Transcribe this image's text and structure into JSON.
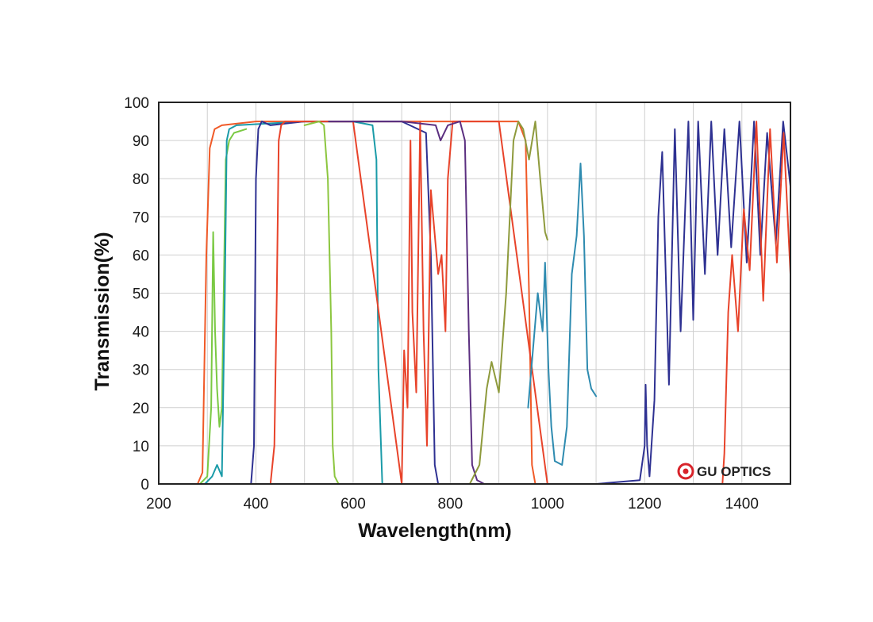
{
  "chart_data": {
    "type": "line",
    "xlabel": "Wavelength(nm)",
    "ylabel": "Transmission(%)",
    "xlim": [
      200,
      1500
    ],
    "ylim": [
      0,
      100
    ],
    "x_ticks": [
      200,
      400,
      600,
      800,
      1000,
      1200,
      1400
    ],
    "x_tick_labels": [
      "200",
      "400",
      "600",
      "800",
      "1000",
      "1200",
      "1400"
    ],
    "y_ticks": [
      0,
      10,
      20,
      30,
      40,
      50,
      60,
      70,
      80,
      90,
      100
    ],
    "y_tick_labels": [
      "0",
      "10",
      "20",
      "30",
      "40",
      "50",
      "60",
      "70",
      "80",
      "90",
      "100"
    ],
    "grid": true,
    "series": [
      {
        "color": "#f05a28",
        "x": [
          280,
          290,
          298,
          305,
          315,
          330,
          400,
          600,
          800,
          900,
          940,
          955,
          962,
          968,
          975
        ],
        "y": [
          0,
          3,
          60,
          88,
          93,
          94,
          95,
          95,
          95,
          95,
          95,
          90,
          50,
          5,
          0
        ]
      },
      {
        "color": "#7ac943",
        "x": [
          285,
          300,
          308,
          312,
          316,
          320,
          325,
          330,
          338,
          345,
          355,
          380
        ],
        "y": [
          0,
          2,
          20,
          66,
          40,
          25,
          15,
          20,
          85,
          90,
          92,
          93
        ]
      },
      {
        "color": "#1a9ba8",
        "x": [
          295,
          310,
          320,
          330,
          336,
          340,
          345,
          360,
          500,
          600,
          640,
          648,
          652,
          660
        ],
        "y": [
          0,
          2,
          5,
          2,
          50,
          90,
          93,
          94,
          95,
          95,
          94,
          85,
          30,
          0
        ]
      },
      {
        "color": "#2e3192",
        "x": [
          390,
          396,
          400,
          405,
          412,
          430,
          500,
          600,
          700,
          750,
          760,
          768,
          775,
          790,
          860,
          960,
          1000,
          1100,
          1190,
          1200,
          1202,
          1205,
          1210,
          1220,
          1228,
          1236,
          1250,
          1262,
          1274,
          1290,
          1300,
          1310,
          1324,
          1337,
          1350,
          1364,
          1378,
          1395,
          1410,
          1425,
          1438,
          1452,
          1470,
          1485,
          1500
        ],
        "y": [
          0,
          10,
          80,
          93,
          95,
          94,
          95,
          95,
          95,
          92,
          60,
          5,
          0,
          0,
          0,
          0,
          0,
          0,
          1,
          10,
          26,
          10,
          2,
          22,
          70,
          87,
          26,
          93,
          40,
          95,
          43,
          95,
          55,
          95,
          60,
          93,
          62,
          95,
          58,
          95,
          60,
          92,
          63,
          95,
          78
        ]
      },
      {
        "color": "#e8432a",
        "x": [
          430,
          438,
          443,
          447,
          452,
          460,
          470,
          600,
          700,
          705,
          712,
          718,
          722,
          730,
          738,
          745,
          752,
          760,
          775,
          782,
          790,
          795,
          805,
          900,
          1000,
          1300,
          1360,
          1364,
          1372,
          1380,
          1392,
          1404,
          1416,
          1430,
          1444,
          1458,
          1472,
          1486,
          1500
        ],
        "y": [
          0,
          10,
          50,
          90,
          94,
          95,
          95,
          95,
          0,
          35,
          20,
          90,
          45,
          24,
          95,
          40,
          10,
          77,
          55,
          60,
          40,
          80,
          95,
          95,
          0,
          0,
          0,
          8,
          45,
          60,
          40,
          72,
          56,
          95,
          48,
          93,
          58,
          92,
          55
        ]
      },
      {
        "color": "#8cc63f",
        "x": [
          500,
          530,
          540,
          548,
          555,
          558,
          562,
          570
        ],
        "y": [
          94,
          95,
          94,
          80,
          40,
          10,
          2,
          0
        ]
      },
      {
        "color": "#5b2f80",
        "x": [
          550,
          600,
          700,
          770,
          780,
          795,
          820,
          830,
          838,
          845,
          855,
          870
        ],
        "y": [
          95,
          95,
          95,
          94,
          90,
          94,
          95,
          90,
          40,
          5,
          1,
          0
        ]
      },
      {
        "color": "#8e9a3c",
        "x": [
          840,
          860,
          875,
          885,
          900,
          915,
          930,
          940,
          950,
          962,
          975,
          985,
          995,
          1000
        ],
        "y": [
          0,
          5,
          25,
          32,
          24,
          50,
          90,
          95,
          93,
          85,
          95,
          80,
          66,
          64
        ]
      },
      {
        "color": "#2e8bb0",
        "x": [
          960,
          970,
          980,
          990,
          995,
          1002,
          1008,
          1015,
          1030,
          1040,
          1050,
          1060,
          1068,
          1075,
          1082,
          1090,
          1100
        ],
        "y": [
          20,
          35,
          50,
          40,
          58,
          30,
          15,
          6,
          5,
          15,
          55,
          65,
          84,
          65,
          30,
          25,
          23
        ]
      }
    ]
  },
  "logo": {
    "text": "GU OPTICS"
  }
}
